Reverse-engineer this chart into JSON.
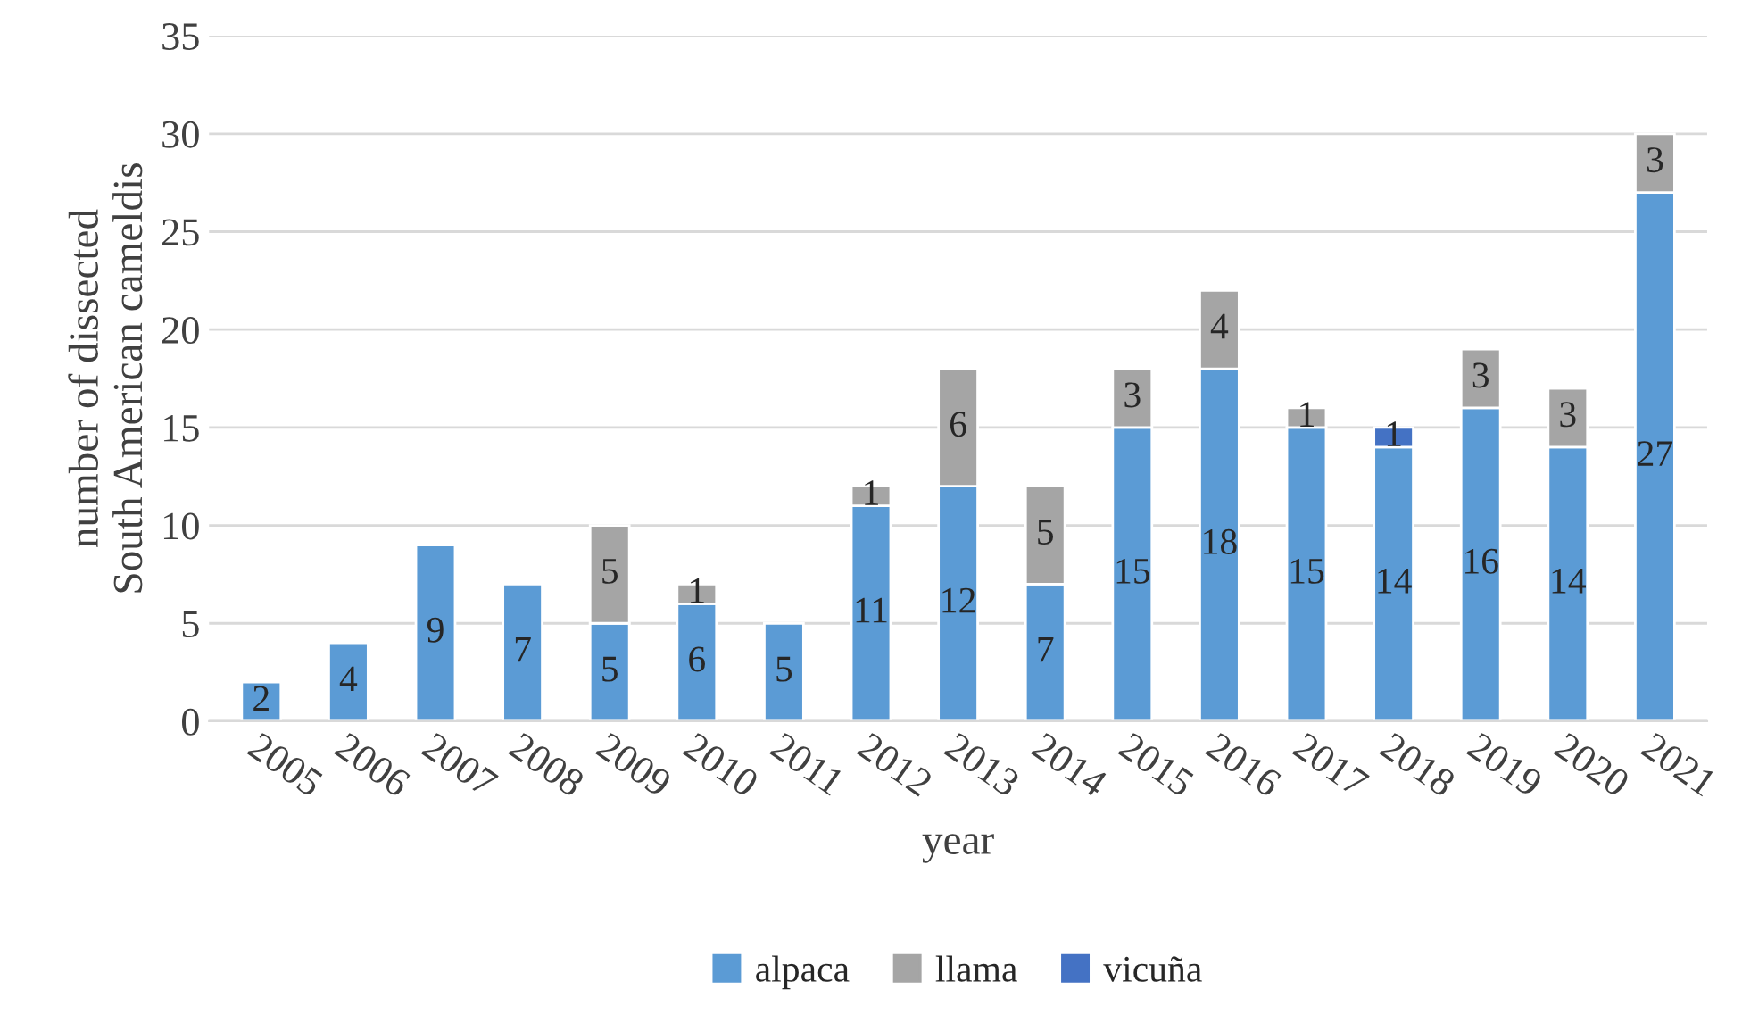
{
  "chart_data": {
    "type": "bar",
    "stacked": true,
    "xlabel": "year",
    "ylabel": "number of dissected\nSouth American cameldis",
    "categories": [
      "2005",
      "2006",
      "2007",
      "2008",
      "2009",
      "2010",
      "2011",
      "2012",
      "2013",
      "2014",
      "2015",
      "2016",
      "2017",
      "2018",
      "2019",
      "2020",
      "2021"
    ],
    "series": [
      {
        "name": "alpaca",
        "color": "#5b9bd5",
        "values": [
          2,
          4,
          9,
          7,
          5,
          6,
          5,
          11,
          12,
          7,
          15,
          18,
          15,
          14,
          16,
          14,
          27
        ]
      },
      {
        "name": "llama",
        "color": "#a5a5a5",
        "values": [
          null,
          null,
          null,
          null,
          5,
          1,
          null,
          1,
          6,
          5,
          3,
          4,
          1,
          null,
          3,
          3,
          3
        ]
      },
      {
        "name": "vicuña",
        "color": "#4472c4",
        "values": [
          null,
          null,
          null,
          null,
          null,
          null,
          null,
          null,
          null,
          null,
          null,
          null,
          null,
          1,
          null,
          null,
          null
        ]
      }
    ],
    "ylim": [
      0,
      35
    ],
    "yticks": [
      0,
      5,
      10,
      15,
      20,
      25,
      30,
      35
    ],
    "grid": "y",
    "legend": "bottom",
    "data_labels": true
  }
}
